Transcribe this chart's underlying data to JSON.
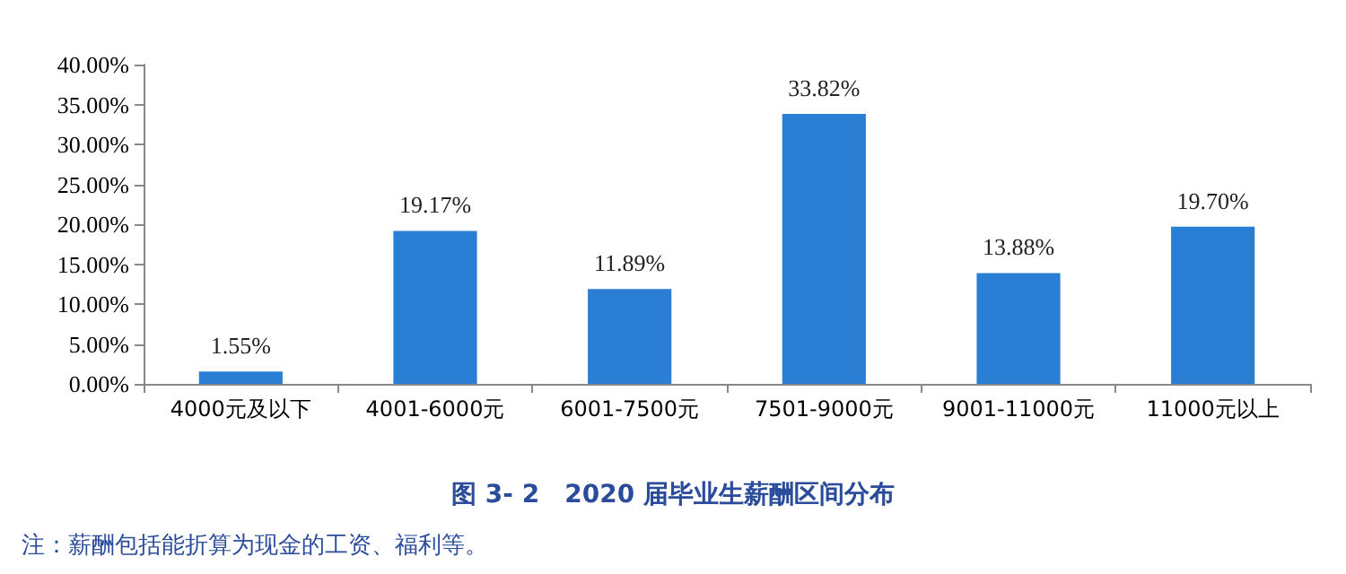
{
  "chart_data": {
    "type": "bar",
    "title": "图 3- 2　2020 届毕业生薪酬区间分布",
    "categories": [
      "4000元及以下",
      "4001-6000元",
      "6001-7500元",
      "7501-9000元",
      "9001-11000元",
      "11000元以上"
    ],
    "values": [
      1.55,
      19.17,
      11.89,
      33.82,
      13.88,
      19.7
    ],
    "value_labels": [
      "1.55%",
      "19.17%",
      "11.89%",
      "33.82%",
      "13.88%",
      "19.70%"
    ],
    "color": "#2a7fd4",
    "ylim": [
      0,
      40
    ],
    "yticks": [
      {
        "value": 0,
        "label": "0.00%"
      },
      {
        "value": 5,
        "label": "5.00%"
      },
      {
        "value": 10,
        "label": "10.00%"
      },
      {
        "value": 15,
        "label": "15.00%"
      },
      {
        "value": 20,
        "label": "20.00%"
      },
      {
        "value": 25,
        "label": "25.00%"
      },
      {
        "value": 30,
        "label": "30.00%"
      },
      {
        "value": 35,
        "label": "35.00%"
      },
      {
        "value": 40,
        "label": "40.00%"
      }
    ],
    "grid": false,
    "annotations": [
      "注：薪酬包括能折算为现金的工资、福利等。"
    ]
  }
}
